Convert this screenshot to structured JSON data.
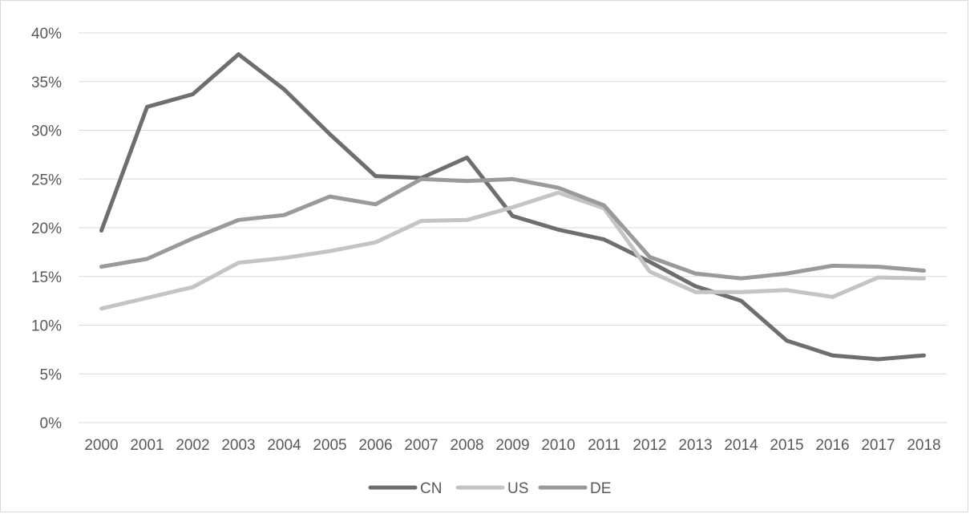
{
  "chart_data": {
    "type": "line",
    "title": "",
    "xlabel": "",
    "ylabel": "",
    "x": [
      "2000",
      "2001",
      "2002",
      "2003",
      "2004",
      "2005",
      "2006",
      "2007",
      "2008",
      "2009",
      "2010",
      "2011",
      "2012",
      "2013",
      "2014",
      "2015",
      "2016",
      "2017",
      "2018"
    ],
    "y_ticks": [
      "0%",
      "5%",
      "10%",
      "15%",
      "20%",
      "25%",
      "30%",
      "35%",
      "40%"
    ],
    "ylim": [
      0,
      40
    ],
    "grid": true,
    "legend_position": "bottom",
    "series": [
      {
        "name": "CN",
        "color": "#6e6e6e",
        "values": [
          19.7,
          32.4,
          33.7,
          37.8,
          34.2,
          29.6,
          25.3,
          25.1,
          27.2,
          21.2,
          19.8,
          18.8,
          16.5,
          14.0,
          12.5,
          8.4,
          6.9,
          6.5,
          6.9
        ]
      },
      {
        "name": "US",
        "color": "#c4c4c4",
        "values": [
          11.7,
          12.8,
          13.9,
          16.4,
          16.9,
          17.6,
          18.5,
          20.7,
          20.8,
          22.1,
          23.6,
          22.0,
          15.5,
          13.4,
          13.4,
          13.6,
          12.9,
          14.9,
          14.8
        ]
      },
      {
        "name": "DE",
        "color": "#9a9a9a",
        "values": [
          16.0,
          16.8,
          18.9,
          20.8,
          21.3,
          23.2,
          22.4,
          25.0,
          24.8,
          25.0,
          24.1,
          22.3,
          17.0,
          15.3,
          14.8,
          15.3,
          16.1,
          16.0,
          15.6
        ]
      }
    ]
  }
}
